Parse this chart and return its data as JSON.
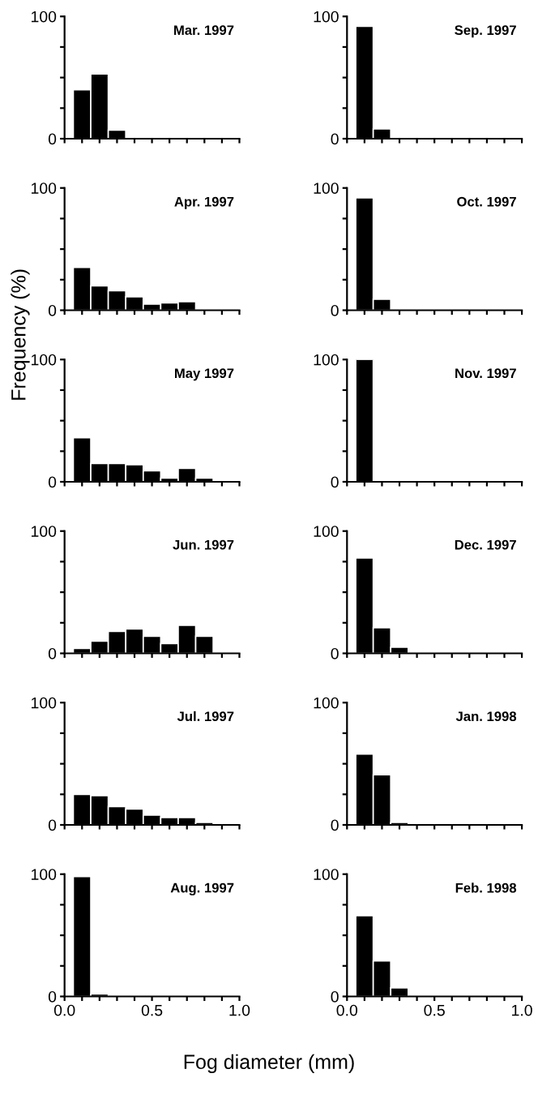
{
  "chart_data": [
    {
      "type": "histogram",
      "title": "Mar. 1997",
      "bins": [
        0.05,
        0.15,
        0.25,
        0.35,
        0.45,
        0.55,
        0.65,
        0.75,
        0.85,
        0.95
      ],
      "values": [
        40,
        53,
        7,
        0,
        0,
        0,
        0,
        0,
        0
      ],
      "color": "#000000",
      "xlim": [
        0,
        1
      ],
      "ylim": [
        0,
        100
      ],
      "xticks": [
        {
          "value": 0,
          "label": null
        },
        {
          "value": 0.1,
          "label": null
        },
        {
          "value": 0.2,
          "label": null
        },
        {
          "value": 0.3,
          "label": null
        },
        {
          "value": 0.4,
          "label": null
        },
        {
          "value": 0.5,
          "label": null
        },
        {
          "value": 0.6,
          "label": null
        },
        {
          "value": 0.7,
          "label": null
        },
        {
          "value": 0.8,
          "label": null
        },
        {
          "value": 0.9,
          "label": null
        },
        {
          "value": 1,
          "label": null
        }
      ],
      "yticks": [
        0,
        {
          "value": 25,
          "label": null
        },
        {
          "value": 50,
          "label": null
        },
        {
          "value": 75,
          "label": null
        },
        100
      ],
      "tick_labels": "y"
    },
    {
      "type": "histogram",
      "title": "Sep. 1997",
      "bins": [
        0.05,
        0.15,
        0.25,
        0.35,
        0.45,
        0.55,
        0.65,
        0.75,
        0.85,
        0.95
      ],
      "values": [
        92,
        8,
        0,
        0,
        0,
        0,
        0,
        0,
        0
      ],
      "color": "#000000",
      "xlim": [
        0,
        1
      ],
      "ylim": [
        0,
        100
      ],
      "xticks": [
        {
          "value": 0,
          "label": null
        },
        {
          "value": 0.1,
          "label": null
        },
        {
          "value": 0.2,
          "label": null
        },
        {
          "value": 0.3,
          "label": null
        },
        {
          "value": 0.4,
          "label": null
        },
        {
          "value": 0.5,
          "label": null
        },
        {
          "value": 0.6,
          "label": null
        },
        {
          "value": 0.7,
          "label": null
        },
        {
          "value": 0.8,
          "label": null
        },
        {
          "value": 0.9,
          "label": null
        },
        {
          "value": 1,
          "label": null
        }
      ],
      "yticks": [
        0,
        {
          "value": 25,
          "label": null
        },
        {
          "value": 50,
          "label": null
        },
        {
          "value": 75,
          "label": null
        },
        100
      ],
      "tick_labels": "y"
    },
    {
      "type": "histogram",
      "title": "Apr. 1997",
      "bins": [
        0.05,
        0.15,
        0.25,
        0.35,
        0.45,
        0.55,
        0.65,
        0.75,
        0.85,
        0.95
      ],
      "values": [
        35,
        20,
        16,
        11,
        5,
        6,
        7,
        0,
        0
      ],
      "color": "#000000",
      "xlim": [
        0,
        1
      ],
      "ylim": [
        0,
        100
      ],
      "xticks": [
        {
          "value": 0,
          "label": null
        },
        {
          "value": 0.1,
          "label": null
        },
        {
          "value": 0.2,
          "label": null
        },
        {
          "value": 0.3,
          "label": null
        },
        {
          "value": 0.4,
          "label": null
        },
        {
          "value": 0.5,
          "label": null
        },
        {
          "value": 0.6,
          "label": null
        },
        {
          "value": 0.7,
          "label": null
        },
        {
          "value": 0.8,
          "label": null
        },
        {
          "value": 0.9,
          "label": null
        },
        {
          "value": 1,
          "label": null
        }
      ],
      "yticks": [
        0,
        {
          "value": 25,
          "label": null
        },
        {
          "value": 50,
          "label": null
        },
        {
          "value": 75,
          "label": null
        },
        100
      ],
      "tick_labels": "y"
    },
    {
      "type": "histogram",
      "title": "Oct. 1997",
      "bins": [
        0.05,
        0.15,
        0.25,
        0.35,
        0.45,
        0.55,
        0.65,
        0.75,
        0.85,
        0.95
      ],
      "values": [
        92,
        9,
        0,
        0,
        0,
        0,
        0,
        0,
        0
      ],
      "color": "#000000",
      "xlim": [
        0,
        1
      ],
      "ylim": [
        0,
        100
      ],
      "xticks": [
        {
          "value": 0,
          "label": null
        },
        {
          "value": 0.1,
          "label": null
        },
        {
          "value": 0.2,
          "label": null
        },
        {
          "value": 0.3,
          "label": null
        },
        {
          "value": 0.4,
          "label": null
        },
        {
          "value": 0.5,
          "label": null
        },
        {
          "value": 0.6,
          "label": null
        },
        {
          "value": 0.7,
          "label": null
        },
        {
          "value": 0.8,
          "label": null
        },
        {
          "value": 0.9,
          "label": null
        },
        {
          "value": 1,
          "label": null
        }
      ],
      "yticks": [
        0,
        {
          "value": 25,
          "label": null
        },
        {
          "value": 50,
          "label": null
        },
        {
          "value": 75,
          "label": null
        },
        100
      ],
      "tick_labels": "y"
    },
    {
      "type": "histogram",
      "title": "May 1997",
      "ylabel": "Frequency (%)",
      "bins": [
        0.05,
        0.15,
        0.25,
        0.35,
        0.45,
        0.55,
        0.65,
        0.75,
        0.85,
        0.95
      ],
      "values": [
        36,
        15,
        15,
        14,
        9,
        3,
        11,
        3,
        0
      ],
      "color": "#000000",
      "xlim": [
        0,
        1
      ],
      "ylim": [
        0,
        100
      ],
      "xticks": [
        {
          "value": 0,
          "label": null
        },
        {
          "value": 0.1,
          "label": null
        },
        {
          "value": 0.2,
          "label": null
        },
        {
          "value": 0.3,
          "label": null
        },
        {
          "value": 0.4,
          "label": null
        },
        {
          "value": 0.5,
          "label": null
        },
        {
          "value": 0.6,
          "label": null
        },
        {
          "value": 0.7,
          "label": null
        },
        {
          "value": 0.8,
          "label": null
        },
        {
          "value": 0.9,
          "label": null
        },
        {
          "value": 1,
          "label": null
        }
      ],
      "yticks": [
        0,
        {
          "value": 25,
          "label": null
        },
        {
          "value": 50,
          "label": null
        },
        {
          "value": 75,
          "label": null
        },
        100
      ],
      "tick_labels": "y"
    },
    {
      "type": "histogram",
      "title": "Nov. 1997",
      "bins": [
        0.05,
        0.15,
        0.25,
        0.35,
        0.45,
        0.55,
        0.65,
        0.75,
        0.85,
        0.95
      ],
      "values": [
        100,
        0,
        0,
        0,
        0,
        0,
        0,
        0,
        0
      ],
      "color": "#000000",
      "xlim": [
        0,
        1
      ],
      "ylim": [
        0,
        100
      ],
      "xticks": [
        {
          "value": 0,
          "label": null
        },
        {
          "value": 0.1,
          "label": null
        },
        {
          "value": 0.2,
          "label": null
        },
        {
          "value": 0.3,
          "label": null
        },
        {
          "value": 0.4,
          "label": null
        },
        {
          "value": 0.5,
          "label": null
        },
        {
          "value": 0.6,
          "label": null
        },
        {
          "value": 0.7,
          "label": null
        },
        {
          "value": 0.8,
          "label": null
        },
        {
          "value": 0.9,
          "label": null
        },
        {
          "value": 1,
          "label": null
        }
      ],
      "yticks": [
        0,
        {
          "value": 25,
          "label": null
        },
        {
          "value": 50,
          "label": null
        },
        {
          "value": 75,
          "label": null
        },
        100
      ],
      "tick_labels": "y"
    },
    {
      "type": "histogram",
      "title": "Jun. 1997",
      "bins": [
        0.05,
        0.15,
        0.25,
        0.35,
        0.45,
        0.55,
        0.65,
        0.75,
        0.85,
        0.95
      ],
      "values": [
        4,
        10,
        18,
        20,
        14,
        8,
        23,
        14,
        0
      ],
      "color": "#000000",
      "xlim": [
        0,
        1
      ],
      "ylim": [
        0,
        100
      ],
      "xticks": [
        {
          "value": 0,
          "label": null
        },
        {
          "value": 0.1,
          "label": null
        },
        {
          "value": 0.2,
          "label": null
        },
        {
          "value": 0.3,
          "label": null
        },
        {
          "value": 0.4,
          "label": null
        },
        {
          "value": 0.5,
          "label": null
        },
        {
          "value": 0.6,
          "label": null
        },
        {
          "value": 0.7,
          "label": null
        },
        {
          "value": 0.8,
          "label": null
        },
        {
          "value": 0.9,
          "label": null
        },
        {
          "value": 1,
          "label": null
        }
      ],
      "yticks": [
        0,
        {
          "value": 25,
          "label": null
        },
        {
          "value": 50,
          "label": null
        },
        {
          "value": 75,
          "label": null
        },
        100
      ],
      "tick_labels": "y"
    },
    {
      "type": "histogram",
      "title": "Dec. 1997",
      "bins": [
        0.05,
        0.15,
        0.25,
        0.35,
        0.45,
        0.55,
        0.65,
        0.75,
        0.85,
        0.95
      ],
      "values": [
        78,
        21,
        5,
        0,
        0,
        0,
        0,
        0,
        0
      ],
      "color": "#000000",
      "xlim": [
        0,
        1
      ],
      "ylim": [
        0,
        100
      ],
      "xticks": [
        {
          "value": 0,
          "label": null
        },
        {
          "value": 0.1,
          "label": null
        },
        {
          "value": 0.2,
          "label": null
        },
        {
          "value": 0.3,
          "label": null
        },
        {
          "value": 0.4,
          "label": null
        },
        {
          "value": 0.5,
          "label": null
        },
        {
          "value": 0.6,
          "label": null
        },
        {
          "value": 0.7,
          "label": null
        },
        {
          "value": 0.8,
          "label": null
        },
        {
          "value": 0.9,
          "label": null
        },
        {
          "value": 1,
          "label": null
        }
      ],
      "yticks": [
        0,
        {
          "value": 25,
          "label": null
        },
        {
          "value": 50,
          "label": null
        },
        {
          "value": 75,
          "label": null
        },
        100
      ],
      "tick_labels": "y"
    },
    {
      "type": "histogram",
      "title": "Jul. 1997",
      "bins": [
        0.05,
        0.15,
        0.25,
        0.35,
        0.45,
        0.55,
        0.65,
        0.75,
        0.85,
        0.95
      ],
      "values": [
        25,
        24,
        15,
        13,
        8,
        6,
        6,
        2,
        0
      ],
      "color": "#000000",
      "xlim": [
        0,
        1
      ],
      "ylim": [
        0,
        100
      ],
      "xticks": [
        {
          "value": 0,
          "label": null
        },
        {
          "value": 0.1,
          "label": null
        },
        {
          "value": 0.2,
          "label": null
        },
        {
          "value": 0.3,
          "label": null
        },
        {
          "value": 0.4,
          "label": null
        },
        {
          "value": 0.5,
          "label": null
        },
        {
          "value": 0.6,
          "label": null
        },
        {
          "value": 0.7,
          "label": null
        },
        {
          "value": 0.8,
          "label": null
        },
        {
          "value": 0.9,
          "label": null
        },
        {
          "value": 1,
          "label": null
        }
      ],
      "yticks": [
        0,
        {
          "value": 25,
          "label": null
        },
        {
          "value": 50,
          "label": null
        },
        {
          "value": 75,
          "label": null
        },
        100
      ],
      "tick_labels": "y"
    },
    {
      "type": "histogram",
      "title": "Jan. 1998",
      "bins": [
        0.05,
        0.15,
        0.25,
        0.35,
        0.45,
        0.55,
        0.65,
        0.75,
        0.85,
        0.95
      ],
      "values": [
        58,
        41,
        2,
        0,
        0,
        0,
        0,
        0,
        0
      ],
      "color": "#000000",
      "xlim": [
        0,
        1
      ],
      "ylim": [
        0,
        100
      ],
      "xticks": [
        {
          "value": 0,
          "label": null
        },
        {
          "value": 0.1,
          "label": null
        },
        {
          "value": 0.2,
          "label": null
        },
        {
          "value": 0.3,
          "label": null
        },
        {
          "value": 0.4,
          "label": null
        },
        {
          "value": 0.5,
          "label": null
        },
        {
          "value": 0.6,
          "label": null
        },
        {
          "value": 0.7,
          "label": null
        },
        {
          "value": 0.8,
          "label": null
        },
        {
          "value": 0.9,
          "label": null
        },
        {
          "value": 1,
          "label": null
        }
      ],
      "yticks": [
        0,
        {
          "value": 25,
          "label": null
        },
        {
          "value": 50,
          "label": null
        },
        {
          "value": 75,
          "label": null
        },
        100
      ],
      "tick_labels": "y"
    },
    {
      "type": "histogram",
      "title": "Aug. 1997",
      "xlabel": "Fog diameter (mm)",
      "bins": [
        0.05,
        0.15,
        0.25,
        0.35,
        0.45,
        0.55,
        0.65,
        0.75,
        0.85,
        0.95
      ],
      "values": [
        98,
        2,
        0,
        0,
        0,
        0,
        0,
        0,
        0
      ],
      "color": "#000000",
      "xlim": [
        0,
        1
      ],
      "ylim": [
        0,
        100
      ],
      "xticks": [
        {
          "value": 0,
          "label": "0.0"
        },
        {
          "value": 0.1,
          "label": null
        },
        {
          "value": 0.2,
          "label": null
        },
        {
          "value": 0.3,
          "label": null
        },
        {
          "value": 0.4,
          "label": null
        },
        {
          "value": 0.5,
          "label": "0.5"
        },
        {
          "value": 0.6,
          "label": null
        },
        {
          "value": 0.7,
          "label": null
        },
        {
          "value": 0.8,
          "label": null
        },
        {
          "value": 0.9,
          "label": null
        },
        {
          "value": 1,
          "label": "1.0"
        }
      ],
      "yticks": [
        0,
        {
          "value": 25,
          "label": null
        },
        {
          "value": 50,
          "label": null
        },
        {
          "value": 75,
          "label": null
        },
        100
      ]
    },
    {
      "type": "histogram",
      "title": "Feb. 1998",
      "bins": [
        0.05,
        0.15,
        0.25,
        0.35,
        0.45,
        0.55,
        0.65,
        0.75,
        0.85,
        0.95
      ],
      "values": [
        66,
        29,
        7,
        0,
        0,
        0,
        0,
        0,
        0
      ],
      "color": "#000000",
      "xlim": [
        0,
        1
      ],
      "ylim": [
        0,
        100
      ],
      "xticks": [
        {
          "value": 0,
          "label": "0.0"
        },
        {
          "value": 0.1,
          "label": null
        },
        {
          "value": 0.2,
          "label": null
        },
        {
          "value": 0.3,
          "label": null
        },
        {
          "value": 0.4,
          "label": null
        },
        {
          "value": 0.5,
          "label": "0.5"
        },
        {
          "value": 0.6,
          "label": null
        },
        {
          "value": 0.7,
          "label": null
        },
        {
          "value": 0.8,
          "label": null
        },
        {
          "value": 0.9,
          "label": null
        },
        {
          "value": 1,
          "label": "1.0"
        }
      ],
      "yticks": [
        0,
        {
          "value": 25,
          "label": null
        },
        {
          "value": 50,
          "label": null
        },
        {
          "value": 75,
          "label": null
        },
        100
      ]
    }
  ]
}
